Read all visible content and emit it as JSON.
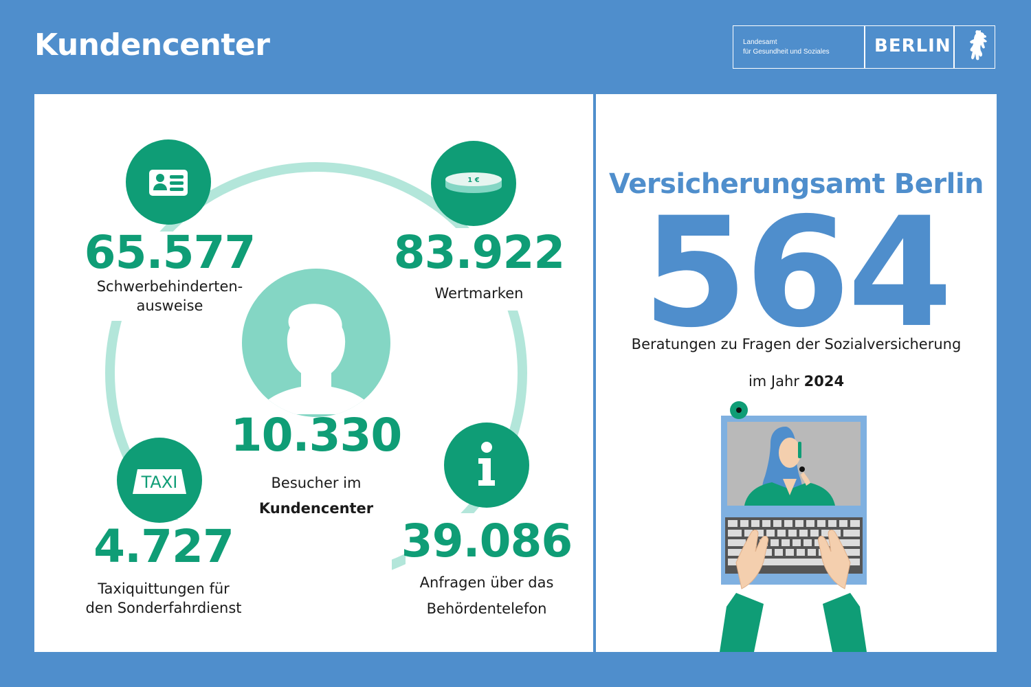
{
  "header": {
    "title": "Kundencenter",
    "logo": {
      "org_line1": "Landesamt",
      "org_line2": "für Gesundheit und Soziales",
      "city": "BERLIN"
    }
  },
  "left_panel": {
    "center": {
      "value": "10.330",
      "label_line1": "Besucher im",
      "label_line2": "Kundencenter",
      "icon": "person-icon"
    },
    "stats": [
      {
        "value": "65.577",
        "label_line1": "Schwerbehinderten-",
        "label_line2": "ausweise",
        "icon": "id-card-icon"
      },
      {
        "value": "83.922",
        "label_line1": "Wertmarken",
        "label_line2": "",
        "icon": "coin-icon",
        "icon_text": "1 €"
      },
      {
        "value": "4.727",
        "label_line1": "Taxiquittungen für",
        "label_line2": "den Sonderfahrdienst",
        "icon": "taxi-icon",
        "icon_text": "TAXI"
      },
      {
        "value": "39.086",
        "label_line1": "Anfragen über das",
        "label_line2": "Behördentelefon",
        "icon": "info-icon",
        "icon_text": "i"
      }
    ]
  },
  "right_panel": {
    "title": "Versicherungsamt Berlin",
    "number": "564",
    "subtitle": "Beratungen zu Fragen der Sozialversicherung",
    "year_prefix": "im Jahr",
    "year": "2024",
    "illustration": "video-call-laptop-illustration"
  },
  "colors": {
    "background": "#4f8ecc",
    "green": "#0f9d76",
    "light_green": "#84d6c4",
    "ring": "#b3e6da",
    "blue": "#4f8ecc"
  }
}
